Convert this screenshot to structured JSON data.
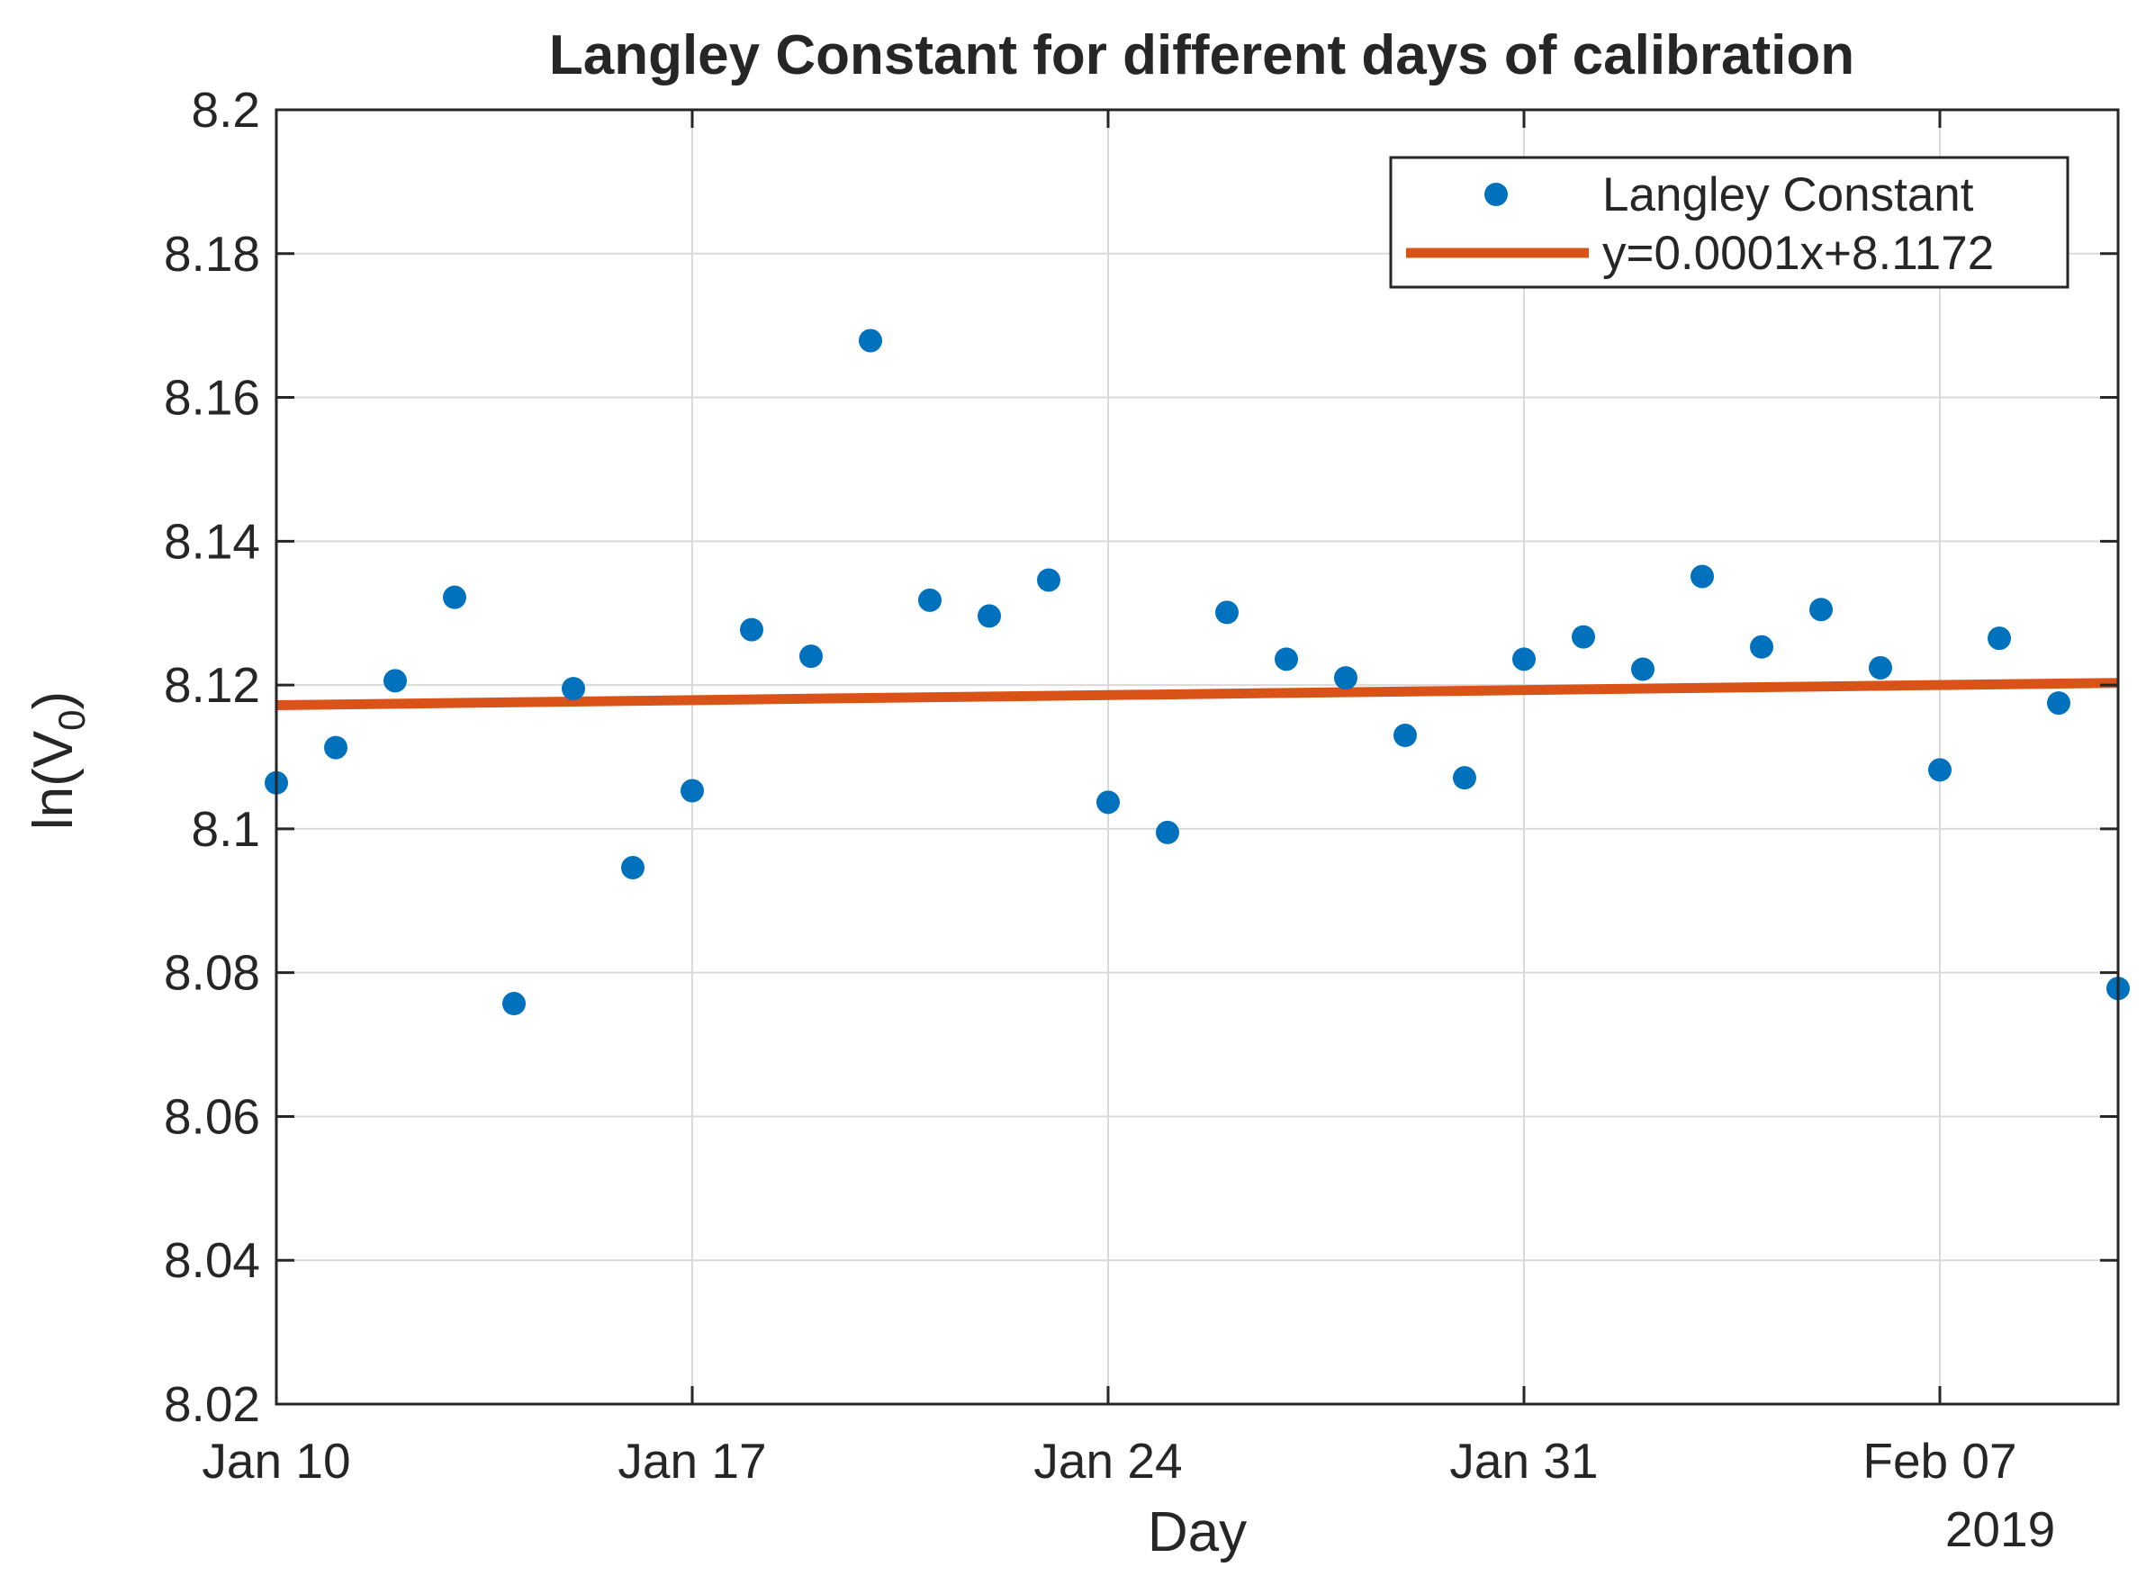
{
  "chart_data": {
    "type": "scatter",
    "title": "Langley Constant for different days of calibration",
    "xlabel": "Day",
    "ylabel_base": "ln(V",
    "ylabel_sub": "0",
    "ylabel_end": ")",
    "year_label": "2019",
    "xlim": [
      0,
      31
    ],
    "ylim": [
      8.02,
      8.2
    ],
    "grid": true,
    "legend_position": "top-right",
    "x_ticks": [
      {
        "value": 0,
        "label": "Jan 10"
      },
      {
        "value": 7,
        "label": "Jan 17"
      },
      {
        "value": 14,
        "label": "Jan 24"
      },
      {
        "value": 21,
        "label": "Jan 31"
      },
      {
        "value": 28,
        "label": "Feb 07"
      }
    ],
    "y_ticks": [
      {
        "value": 8.02,
        "label": "8.02"
      },
      {
        "value": 8.04,
        "label": "8.04"
      },
      {
        "value": 8.06,
        "label": "8.06"
      },
      {
        "value": 8.08,
        "label": "8.08"
      },
      {
        "value": 8.1,
        "label": "8.1"
      },
      {
        "value": 8.12,
        "label": "8.12"
      },
      {
        "value": 8.14,
        "label": "8.14"
      },
      {
        "value": 8.16,
        "label": "8.16"
      },
      {
        "value": 8.18,
        "label": "8.18"
      },
      {
        "value": 8.2,
        "label": "8.2"
      }
    ],
    "series": [
      {
        "name": "Langley Constant",
        "kind": "scatter",
        "color": "#0072BD",
        "x": [
          0,
          1,
          2,
          3,
          4,
          5,
          6,
          7,
          8,
          9,
          10,
          11,
          12,
          13,
          14,
          15,
          16,
          17,
          18,
          19,
          20,
          21,
          22,
          23,
          24,
          25,
          26,
          27,
          28,
          29,
          30,
          31
        ],
        "y": [
          8.1064,
          8.1113,
          8.1206,
          8.1322,
          8.0757,
          8.1195,
          8.0946,
          8.1053,
          8.1277,
          8.124,
          8.1679,
          8.1318,
          8.1296,
          8.1346,
          8.1037,
          8.0995,
          8.1301,
          8.1236,
          8.121,
          8.113,
          8.1071,
          8.1236,
          8.1267,
          8.1222,
          8.1351,
          8.1253,
          8.1305,
          8.1224,
          8.1082,
          8.1265,
          8.1175,
          8.0778
        ]
      },
      {
        "name": "y=0.0001x+8.1172",
        "kind": "line",
        "color": "#D95319",
        "x": [
          0,
          31
        ],
        "y": [
          8.1172,
          8.1203
        ]
      }
    ]
  }
}
